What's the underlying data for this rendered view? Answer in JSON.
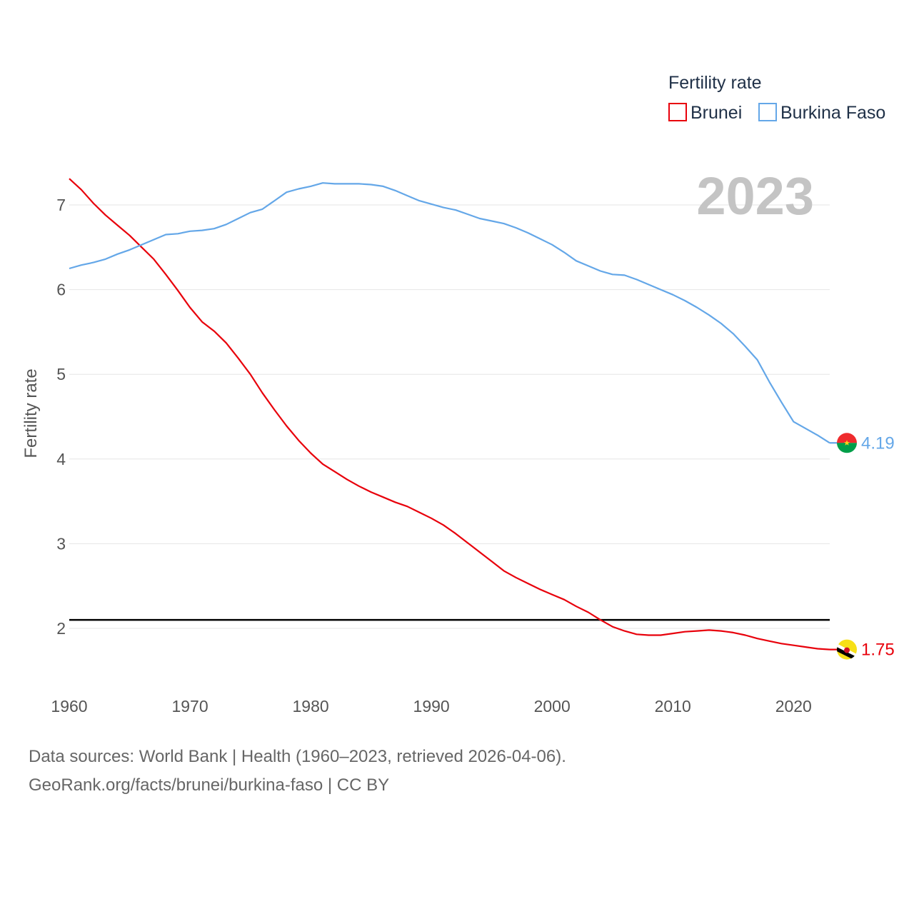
{
  "chart_data": {
    "type": "line",
    "legend_title": "Fertility rate",
    "ylabel": "Fertility rate",
    "year_label": "2023",
    "xlim": [
      1960,
      2023
    ],
    "ylim": [
      1.3,
      7.5
    ],
    "x_ticks": [
      1960,
      1970,
      1980,
      1990,
      2000,
      2010,
      2020
    ],
    "y_ticks": [
      2,
      3,
      4,
      5,
      6,
      7
    ],
    "reference_line": 2.1,
    "x": [
      1960,
      1961,
      1962,
      1963,
      1964,
      1965,
      1966,
      1967,
      1968,
      1969,
      1970,
      1971,
      1972,
      1973,
      1974,
      1975,
      1976,
      1977,
      1978,
      1979,
      1980,
      1981,
      1982,
      1983,
      1984,
      1985,
      1986,
      1987,
      1988,
      1989,
      1990,
      1991,
      1992,
      1993,
      1994,
      1995,
      1996,
      1997,
      1998,
      1999,
      2000,
      2001,
      2002,
      2003,
      2004,
      2005,
      2006,
      2007,
      2008,
      2009,
      2010,
      2011,
      2012,
      2013,
      2014,
      2015,
      2016,
      2017,
      2018,
      2019,
      2020,
      2021,
      2022,
      2023
    ],
    "series": [
      {
        "name": "Brunei",
        "color": "#e8000b",
        "end_label": "1.75",
        "flag": "brunei-flag-icon",
        "values": [
          7.31,
          7.18,
          7.02,
          6.88,
          6.76,
          6.64,
          6.5,
          6.36,
          6.18,
          5.99,
          5.79,
          5.62,
          5.51,
          5.37,
          5.19,
          5.0,
          4.78,
          4.58,
          4.39,
          4.22,
          4.07,
          3.94,
          3.85,
          3.76,
          3.68,
          3.61,
          3.55,
          3.49,
          3.44,
          3.37,
          3.3,
          3.22,
          3.12,
          3.01,
          2.9,
          2.79,
          2.68,
          2.6,
          2.53,
          2.46,
          2.4,
          2.34,
          2.26,
          2.19,
          2.1,
          2.02,
          1.97,
          1.93,
          1.92,
          1.92,
          1.94,
          1.96,
          1.97,
          1.98,
          1.97,
          1.95,
          1.92,
          1.88,
          1.85,
          1.82,
          1.8,
          1.78,
          1.76,
          1.75
        ]
      },
      {
        "name": "Burkina Faso",
        "color": "#64a7e8",
        "end_label": "4.19",
        "flag": "burkina-faso-flag-icon",
        "values": [
          6.25,
          6.29,
          6.32,
          6.36,
          6.42,
          6.47,
          6.53,
          6.59,
          6.65,
          6.66,
          6.69,
          6.7,
          6.72,
          6.77,
          6.84,
          6.91,
          6.95,
          7.05,
          7.15,
          7.19,
          7.22,
          7.26,
          7.25,
          7.25,
          7.25,
          7.24,
          7.22,
          7.17,
          7.11,
          7.05,
          7.01,
          6.97,
          6.94,
          6.89,
          6.84,
          6.81,
          6.78,
          6.73,
          6.67,
          6.6,
          6.53,
          6.44,
          6.34,
          6.28,
          6.22,
          6.18,
          6.17,
          6.12,
          6.06,
          6.0,
          5.94,
          5.87,
          5.79,
          5.7,
          5.6,
          5.48,
          5.33,
          5.17,
          4.91,
          4.67,
          4.44,
          4.36,
          4.28,
          4.19
        ]
      }
    ]
  },
  "footer": {
    "line1": "Data sources: World Bank | Health (1960–2023, retrieved 2026-04-06).",
    "line2": "GeoRank.org/facts/brunei/burkina-faso | CC BY"
  }
}
